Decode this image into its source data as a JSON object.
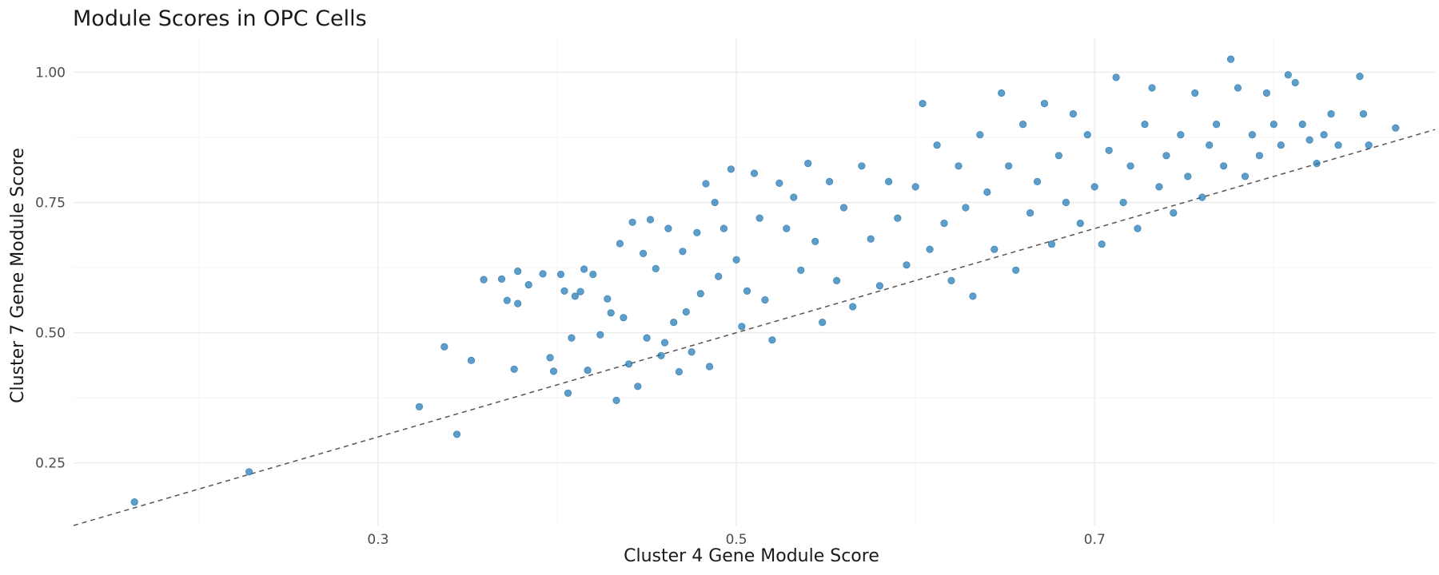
{
  "chart_data": {
    "type": "scatter",
    "title": "Module Scores in OPC Cells",
    "xlabel": "Cluster 4 Gene Module Score",
    "ylabel": "Cluster 7 Gene Module Score",
    "xlim": [
      0.13,
      0.89
    ],
    "ylim": [
      0.13,
      1.065
    ],
    "x_ticks": [
      0.3,
      0.5,
      0.7
    ],
    "x_tick_labels": [
      "0.3",
      "0.5",
      "0.7"
    ],
    "y_ticks": [
      0.25,
      0.5,
      0.75,
      1.0
    ],
    "y_tick_labels": [
      "0.25",
      "0.50",
      "0.75",
      "1.00"
    ],
    "grid": true,
    "point_color": "#1f77b4",
    "reference_line": {
      "slope": 1,
      "intercept": 0,
      "style": "dashed",
      "color": "#555555"
    },
    "points": [
      [
        0.164,
        0.175
      ],
      [
        0.228,
        0.233
      ],
      [
        0.352,
        0.447
      ],
      [
        0.323,
        0.358
      ],
      [
        0.337,
        0.473
      ],
      [
        0.344,
        0.305
      ],
      [
        0.376,
        0.43
      ],
      [
        0.372,
        0.562
      ],
      [
        0.378,
        0.556
      ],
      [
        0.384,
        0.592
      ],
      [
        0.369,
        0.603
      ],
      [
        0.359,
        0.602
      ],
      [
        0.378,
        0.618
      ],
      [
        0.392,
        0.613
      ],
      [
        0.396,
        0.452
      ],
      [
        0.398,
        0.426
      ],
      [
        0.402,
        0.612
      ],
      [
        0.404,
        0.58
      ],
      [
        0.406,
        0.384
      ],
      [
        0.408,
        0.49
      ],
      [
        0.41,
        0.57
      ],
      [
        0.413,
        0.579
      ],
      [
        0.415,
        0.622
      ],
      [
        0.417,
        0.428
      ],
      [
        0.42,
        0.612
      ],
      [
        0.424,
        0.496
      ],
      [
        0.428,
        0.565
      ],
      [
        0.43,
        0.538
      ],
      [
        0.433,
        0.37
      ],
      [
        0.435,
        0.671
      ],
      [
        0.437,
        0.529
      ],
      [
        0.44,
        0.44
      ],
      [
        0.442,
        0.712
      ],
      [
        0.445,
        0.397
      ],
      [
        0.448,
        0.652
      ],
      [
        0.45,
        0.49
      ],
      [
        0.452,
        0.717
      ],
      [
        0.455,
        0.623
      ],
      [
        0.458,
        0.456
      ],
      [
        0.46,
        0.481
      ],
      [
        0.462,
        0.7
      ],
      [
        0.465,
        0.52
      ],
      [
        0.468,
        0.425
      ],
      [
        0.47,
        0.656
      ],
      [
        0.472,
        0.54
      ],
      [
        0.475,
        0.463
      ],
      [
        0.478,
        0.692
      ],
      [
        0.48,
        0.575
      ],
      [
        0.483,
        0.786
      ],
      [
        0.485,
        0.435
      ],
      [
        0.488,
        0.75
      ],
      [
        0.49,
        0.608
      ],
      [
        0.493,
        0.7
      ],
      [
        0.497,
        0.814
      ],
      [
        0.5,
        0.64
      ],
      [
        0.503,
        0.512
      ],
      [
        0.506,
        0.58
      ],
      [
        0.51,
        0.806
      ],
      [
        0.513,
        0.72
      ],
      [
        0.516,
        0.563
      ],
      [
        0.52,
        0.486
      ],
      [
        0.524,
        0.787
      ],
      [
        0.528,
        0.7
      ],
      [
        0.532,
        0.76
      ],
      [
        0.536,
        0.62
      ],
      [
        0.54,
        0.825
      ],
      [
        0.544,
        0.675
      ],
      [
        0.548,
        0.52
      ],
      [
        0.552,
        0.79
      ],
      [
        0.556,
        0.6
      ],
      [
        0.56,
        0.74
      ],
      [
        0.565,
        0.55
      ],
      [
        0.57,
        0.82
      ],
      [
        0.575,
        0.68
      ],
      [
        0.58,
        0.59
      ],
      [
        0.585,
        0.79
      ],
      [
        0.59,
        0.72
      ],
      [
        0.595,
        0.63
      ],
      [
        0.6,
        0.78
      ],
      [
        0.604,
        0.94
      ],
      [
        0.608,
        0.66
      ],
      [
        0.612,
        0.86
      ],
      [
        0.616,
        0.71
      ],
      [
        0.62,
        0.6
      ],
      [
        0.624,
        0.82
      ],
      [
        0.628,
        0.74
      ],
      [
        0.632,
        0.57
      ],
      [
        0.636,
        0.88
      ],
      [
        0.64,
        0.77
      ],
      [
        0.644,
        0.66
      ],
      [
        0.648,
        0.96
      ],
      [
        0.652,
        0.82
      ],
      [
        0.656,
        0.62
      ],
      [
        0.66,
        0.9
      ],
      [
        0.664,
        0.73
      ],
      [
        0.668,
        0.79
      ],
      [
        0.672,
        0.94
      ],
      [
        0.676,
        0.67
      ],
      [
        0.68,
        0.84
      ],
      [
        0.684,
        0.75
      ],
      [
        0.688,
        0.92
      ],
      [
        0.692,
        0.71
      ],
      [
        0.696,
        0.88
      ],
      [
        0.7,
        0.78
      ],
      [
        0.704,
        0.67
      ],
      [
        0.708,
        0.85
      ],
      [
        0.712,
        0.99
      ],
      [
        0.716,
        0.75
      ],
      [
        0.72,
        0.82
      ],
      [
        0.724,
        0.7
      ],
      [
        0.728,
        0.9
      ],
      [
        0.732,
        0.97
      ],
      [
        0.736,
        0.78
      ],
      [
        0.74,
        0.84
      ],
      [
        0.744,
        0.73
      ],
      [
        0.748,
        0.88
      ],
      [
        0.752,
        0.8
      ],
      [
        0.756,
        0.96
      ],
      [
        0.76,
        0.76
      ],
      [
        0.764,
        0.86
      ],
      [
        0.768,
        0.9
      ],
      [
        0.772,
        0.82
      ],
      [
        0.776,
        1.025
      ],
      [
        0.78,
        0.97
      ],
      [
        0.784,
        0.8
      ],
      [
        0.788,
        0.88
      ],
      [
        0.792,
        0.84
      ],
      [
        0.796,
        0.96
      ],
      [
        0.8,
        0.9
      ],
      [
        0.804,
        0.86
      ],
      [
        0.808,
        0.995
      ],
      [
        0.812,
        0.98
      ],
      [
        0.816,
        0.9
      ],
      [
        0.82,
        0.87
      ],
      [
        0.824,
        0.825
      ],
      [
        0.828,
        0.88
      ],
      [
        0.832,
        0.92
      ],
      [
        0.836,
        0.86
      ],
      [
        0.848,
        0.992
      ],
      [
        0.85,
        0.92
      ],
      [
        0.853,
        0.86
      ],
      [
        0.868,
        0.893
      ]
    ]
  }
}
